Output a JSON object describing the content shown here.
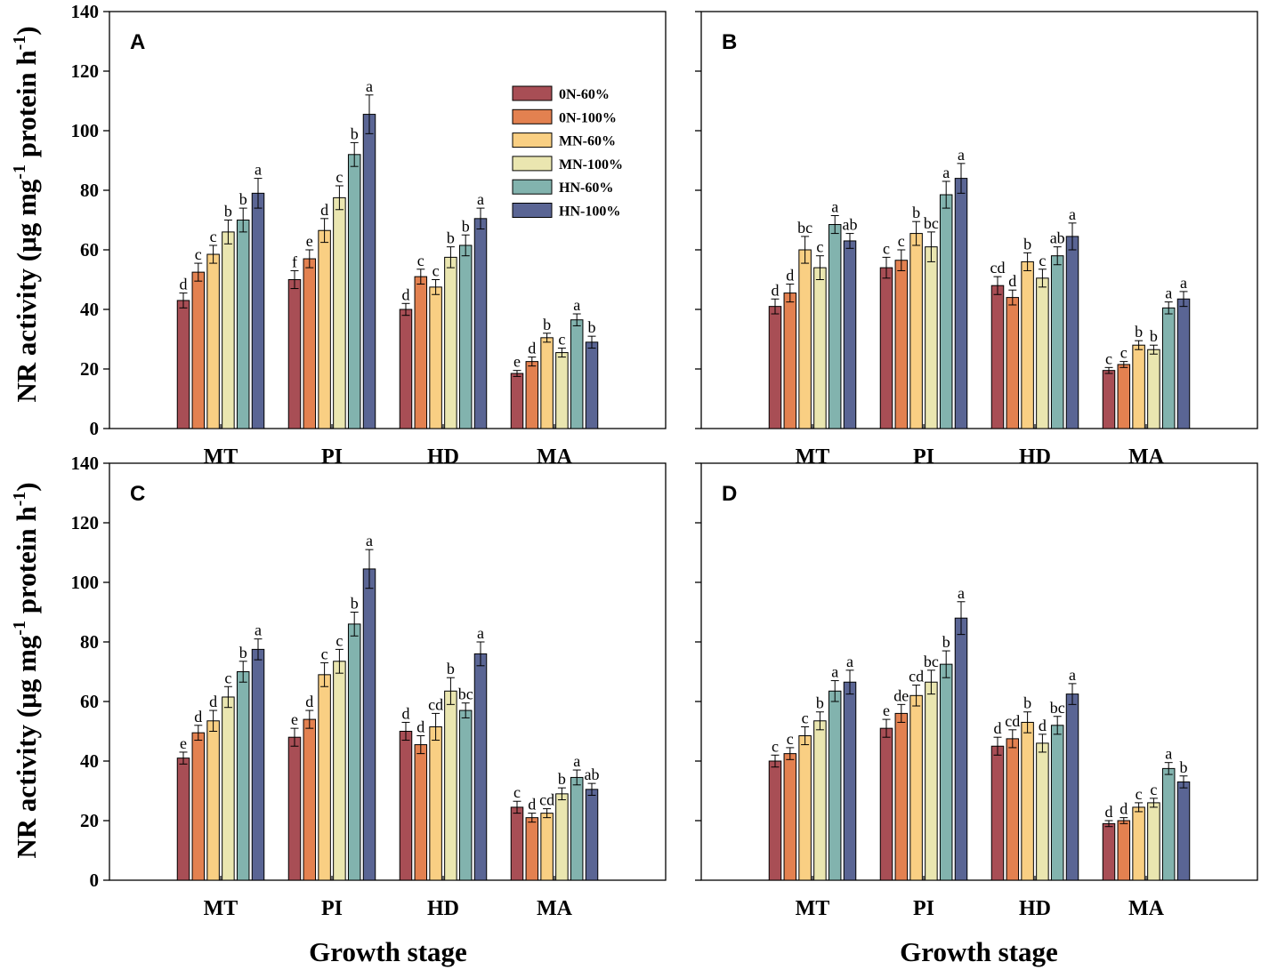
{
  "chart_data": {
    "type": "bar",
    "ylabel_main": "NR activity (μg mg",
    "ylabel_sup1": "-1",
    "ylabel_mid": " protein h",
    "ylabel_sup2": "-1",
    "ylabel_end": ")",
    "xlabel": "Growth stage",
    "ylim": [
      0,
      140
    ],
    "yticks": [
      "0",
      "20",
      "40",
      "60",
      "80",
      "100",
      "120",
      "140"
    ],
    "categories": [
      "MT",
      "PI",
      "HD",
      "MA"
    ],
    "series_names": [
      "0N-60%",
      "0N-100%",
      "MN-60%",
      "MN-100%",
      "HN-60%",
      "HN-100%"
    ],
    "series_colors": [
      "#a84e55",
      "#e38150",
      "#f9cf83",
      "#eae6b0",
      "#82b3ae",
      "#5a6594"
    ],
    "panels": [
      {
        "letter": "A",
        "values": [
          [
            43,
            52.5,
            58.5,
            66,
            70,
            79
          ],
          [
            50,
            57,
            66.5,
            77.5,
            92,
            105.5
          ],
          [
            40,
            51,
            47.5,
            57.5,
            61.5,
            70.5
          ],
          [
            18.5,
            22.5,
            30.5,
            25.5,
            36.5,
            29
          ]
        ],
        "errors": [
          [
            2.5,
            3,
            3,
            4,
            4,
            5
          ],
          [
            3,
            3,
            4,
            4,
            4,
            6.5
          ],
          [
            2,
            2.5,
            2.5,
            3.5,
            3.5,
            3.5
          ],
          [
            1,
            1.5,
            1.5,
            1.5,
            2,
            2
          ]
        ],
        "letters": [
          [
            "d",
            "c",
            "c",
            "b",
            "b",
            "a"
          ],
          [
            "f",
            "e",
            "d",
            "c",
            "b",
            "a"
          ],
          [
            "d",
            "c",
            "c",
            "b",
            "b",
            "a"
          ],
          [
            "e",
            "d",
            "b",
            "c",
            "a",
            "b"
          ]
        ]
      },
      {
        "letter": "B",
        "values": [
          [
            41,
            45.5,
            60,
            54,
            68.5,
            63
          ],
          [
            54,
            56.5,
            65.5,
            61,
            78.5,
            84
          ],
          [
            48,
            44,
            56,
            50.5,
            58,
            64.5
          ],
          [
            19.5,
            21.5,
            28,
            26.5,
            40.5,
            43.5
          ]
        ],
        "errors": [
          [
            2.5,
            3,
            4.5,
            4,
            3,
            2.5
          ],
          [
            3.5,
            3.5,
            4,
            5,
            4.5,
            5
          ],
          [
            3,
            2.5,
            3,
            3,
            3,
            4.5
          ],
          [
            1,
            1,
            1.5,
            1.5,
            2,
            2.5
          ]
        ],
        "letters": [
          [
            "d",
            "d",
            "bc",
            "c",
            "a",
            "ab"
          ],
          [
            "c",
            "c",
            "b",
            "bc",
            "a",
            "a"
          ],
          [
            "cd",
            "d",
            "b",
            "c",
            "ab",
            "a"
          ],
          [
            "c",
            "c",
            "b",
            "b",
            "a",
            "a"
          ]
        ]
      },
      {
        "letter": "C",
        "values": [
          [
            41,
            49.5,
            53.5,
            61.5,
            70,
            77.5
          ],
          [
            48,
            54,
            69,
            73.5,
            86,
            104.5
          ],
          [
            50,
            45.5,
            51.5,
            63.5,
            57,
            76
          ],
          [
            24.5,
            21,
            22.5,
            29,
            34.5,
            30.5
          ]
        ],
        "errors": [
          [
            2,
            2.5,
            3.5,
            3.5,
            3.5,
            3.5
          ],
          [
            3,
            3,
            4,
            4,
            4,
            6.5
          ],
          [
            3,
            3,
            4.5,
            4.5,
            2.5,
            4
          ],
          [
            2,
            1.5,
            1.5,
            2,
            2.5,
            2
          ]
        ],
        "letters": [
          [
            "e",
            "d",
            "d",
            "c",
            "b",
            "a"
          ],
          [
            "e",
            "d",
            "c",
            "c",
            "b",
            "a"
          ],
          [
            "d",
            "d",
            "cd",
            "b",
            "bc",
            "a"
          ],
          [
            "c",
            "d",
            "cd",
            "b",
            "a",
            "ab"
          ]
        ]
      },
      {
        "letter": "D",
        "values": [
          [
            40,
            42.5,
            48.5,
            53.5,
            63.5,
            66.5
          ],
          [
            51,
            56,
            62,
            66.5,
            72.5,
            88
          ],
          [
            45,
            47.5,
            53,
            46,
            52,
            62.5
          ],
          [
            19,
            20,
            24.5,
            26,
            37.5,
            33
          ]
        ],
        "errors": [
          [
            2,
            2,
            3,
            3,
            3.5,
            4
          ],
          [
            3,
            3,
            3.5,
            4,
            4.5,
            5.5
          ],
          [
            3,
            3,
            3.5,
            3,
            3,
            3.5
          ],
          [
            1,
            1,
            1.5,
            1.5,
            2,
            2
          ]
        ],
        "letters": [
          [
            "c",
            "c",
            "c",
            "b",
            "a",
            "a"
          ],
          [
            "e",
            "de",
            "cd",
            "bc",
            "b",
            "a"
          ],
          [
            "d",
            "cd",
            "b",
            "d",
            "bc",
            "a"
          ],
          [
            "d",
            "d",
            "c",
            "c",
            "a",
            "b"
          ]
        ]
      }
    ]
  }
}
